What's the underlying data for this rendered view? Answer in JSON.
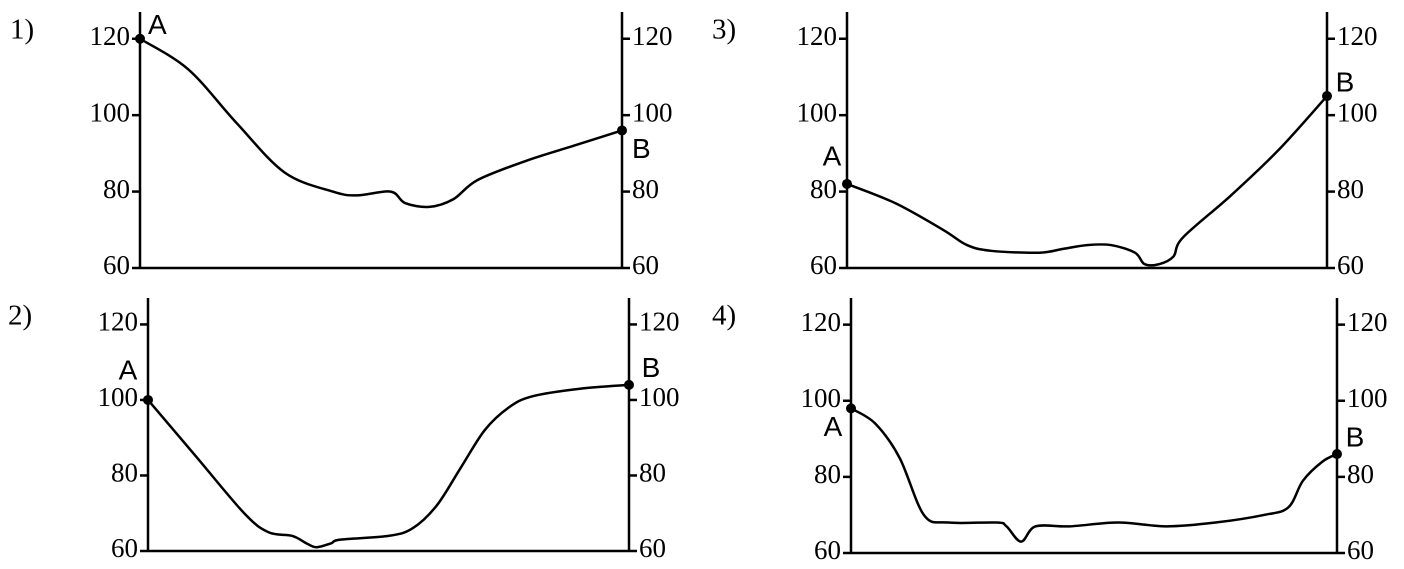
{
  "chart_data": [
    {
      "type": "line",
      "panel_label": "1)",
      "color": "#000000",
      "x": [
        0,
        10,
        20,
        30,
        40,
        45,
        52,
        55,
        60,
        65,
        70,
        80,
        90,
        100
      ],
      "values": [
        120,
        112,
        98,
        85,
        80,
        79,
        80,
        77,
        76,
        78,
        83,
        88,
        92,
        96
      ],
      "xlim": [
        0,
        100
      ],
      "ylim": [
        60,
        127
      ],
      "yticks": [
        60,
        80,
        100,
        120
      ],
      "y2lim": [
        60,
        127
      ],
      "y2ticks": [
        60,
        80,
        100,
        120
      ],
      "start_label": "A",
      "end_label": "B"
    },
    {
      "type": "line",
      "panel_label": "2)",
      "color": "#000000",
      "x": [
        0,
        10,
        20,
        25,
        30,
        33,
        35,
        38,
        40,
        50,
        55,
        60,
        65,
        70,
        75,
        80,
        90,
        100
      ],
      "values": [
        100,
        85,
        70,
        65,
        64,
        62,
        61,
        62,
        63,
        64,
        66,
        72,
        82,
        92,
        98,
        101,
        103,
        104
      ],
      "xlim": [
        0,
        100
      ],
      "ylim": [
        60,
        127
      ],
      "yticks": [
        60,
        80,
        100,
        120
      ],
      "y2lim": [
        60,
        127
      ],
      "y2ticks": [
        60,
        80,
        100,
        120
      ],
      "start_label": "A",
      "end_label": "B"
    },
    {
      "type": "line",
      "panel_label": "3)",
      "color": "#000000",
      "x": [
        0,
        10,
        20,
        25,
        30,
        40,
        45,
        50,
        55,
        60,
        62,
        65,
        68,
        70,
        80,
        90,
        100
      ],
      "values": [
        82,
        77,
        70,
        66,
        64.5,
        64,
        65,
        66,
        66,
        64,
        61,
        61,
        63,
        68,
        79,
        91,
        105
      ],
      "xlim": [
        0,
        100
      ],
      "ylim": [
        60,
        127
      ],
      "yticks": [
        60,
        80,
        100,
        120
      ],
      "y2lim": [
        60,
        127
      ],
      "y2ticks": [
        60,
        80,
        100,
        120
      ],
      "start_label": "A",
      "end_label": "B"
    },
    {
      "type": "line",
      "panel_label": "4)",
      "color": "#000000",
      "x": [
        0,
        5,
        10,
        15,
        20,
        30,
        32,
        35,
        38,
        45,
        55,
        65,
        75,
        85,
        90,
        93,
        97,
        100
      ],
      "values": [
        98,
        94,
        85,
        70,
        68,
        68,
        67,
        63,
        67,
        67,
        68,
        67,
        68,
        70,
        72,
        79,
        84,
        86
      ],
      "xlim": [
        0,
        100
      ],
      "ylim": [
        60,
        127
      ],
      "yticks": [
        60,
        80,
        100,
        120
      ],
      "y2lim": [
        60,
        127
      ],
      "y2ticks": [
        60,
        80,
        100,
        120
      ],
      "start_label": "A",
      "end_label": "B"
    }
  ]
}
